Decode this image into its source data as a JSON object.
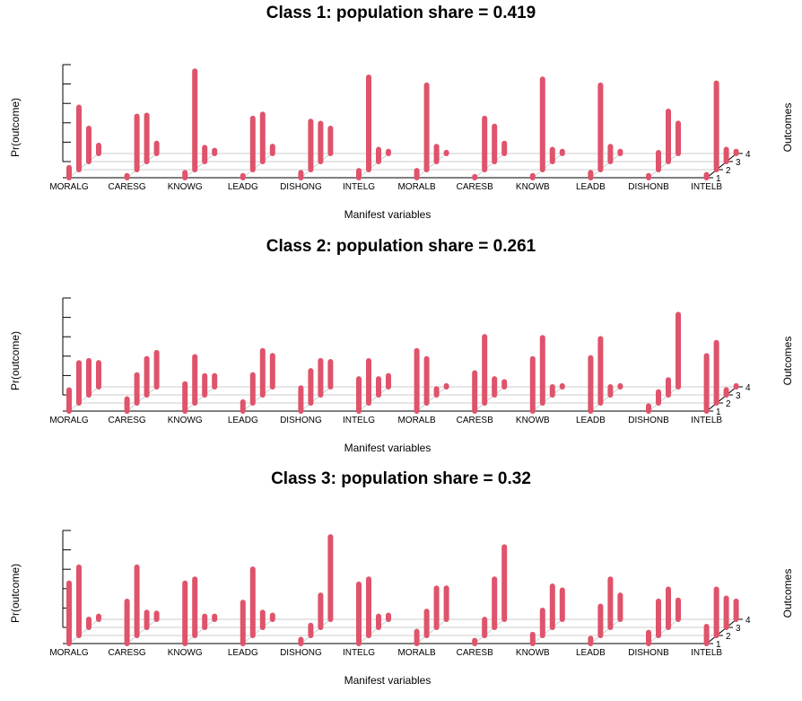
{
  "colors": {
    "bar": "#DF536B",
    "guide": "#BEBEBE",
    "axis": "#000000"
  },
  "chart_data": [
    {
      "type": "3d-bar",
      "title": "Class 1: population share = 0.419",
      "xlabel": "Manifest variables",
      "ylabel": "Pr(outcome)",
      "zlabel": "Outcomes",
      "categories": [
        "MORALG",
        "CARESG",
        "KNOWG",
        "LEADG",
        "DISHONG",
        "INTELG",
        "MORALB",
        "CARESB",
        "KNOWB",
        "LEADB",
        "DISHONB",
        "INTELB"
      ],
      "outcomes": [
        "1",
        "2",
        "3",
        "4"
      ],
      "ylim": [
        0,
        1
      ],
      "values": [
        [
          0.1,
          0.62,
          0.33,
          0.08
        ],
        [
          0.02,
          0.53,
          0.46,
          0.1
        ],
        [
          0.05,
          0.98,
          0.14,
          0.03
        ],
        [
          0.02,
          0.51,
          0.47,
          0.07
        ],
        [
          0.05,
          0.48,
          0.38,
          0.25
        ],
        [
          0.07,
          0.92,
          0.12,
          0.02
        ],
        [
          0.07,
          0.84,
          0.15,
          0.01
        ],
        [
          0.01,
          0.51,
          0.35,
          0.1
        ],
        [
          0.02,
          0.9,
          0.12,
          0.02
        ],
        [
          0.05,
          0.84,
          0.15,
          0.02
        ],
        [
          0.02,
          0.17,
          0.5,
          0.3
        ],
        [
          0.03,
          0.86,
          0.12,
          0.02
        ]
      ]
    },
    {
      "type": "3d-bar",
      "title": "Class 2: population share = 0.261",
      "xlabel": "Manifest variables",
      "ylabel": "Pr(outcome)",
      "zlabel": "Outcomes",
      "categories": [
        "MORALG",
        "CARESG",
        "KNOWG",
        "LEADG",
        "DISHONG",
        "INTELG",
        "MORALB",
        "CARESB",
        "KNOWB",
        "LEADB",
        "DISHONB",
        "INTELB"
      ],
      "outcomes": [
        "1",
        "2",
        "3",
        "4"
      ],
      "ylim": [
        0,
        1
      ],
      "values": [
        [
          0.21,
          0.4,
          0.34,
          0.24
        ],
        [
          0.12,
          0.28,
          0.36,
          0.34
        ],
        [
          0.27,
          0.46,
          0.19,
          0.11
        ],
        [
          0.09,
          0.28,
          0.44,
          0.31
        ],
        [
          0.23,
          0.32,
          0.34,
          0.25
        ],
        [
          0.32,
          0.42,
          0.16,
          0.11
        ],
        [
          0.6,
          0.44,
          0.06,
          0.01
        ],
        [
          0.38,
          0.66,
          0.16,
          0.05
        ],
        [
          0.52,
          0.65,
          0.08,
          0.01
        ],
        [
          0.53,
          0.64,
          0.08,
          0.01
        ],
        [
          0.05,
          0.11,
          0.15,
          0.72
        ],
        [
          0.55,
          0.6,
          0.05,
          0.01
        ]
      ]
    },
    {
      "type": "3d-bar",
      "title": "Class 3: population share = 0.32",
      "xlabel": "Manifest variables",
      "ylabel": "Pr(outcome)",
      "zlabel": "Outcomes",
      "categories": [
        "MORALG",
        "CARESG",
        "KNOWG",
        "LEADG",
        "DISHONG",
        "INTELG",
        "MORALB",
        "CARESB",
        "KNOWB",
        "LEADB",
        "DISHONB",
        "INTELB"
      ],
      "outcomes": [
        "1",
        "2",
        "3",
        "4"
      ],
      "ylim": [
        0,
        1
      ],
      "values": [
        [
          0.6,
          0.68,
          0.08,
          0.03
        ],
        [
          0.42,
          0.68,
          0.15,
          0.06
        ],
        [
          0.6,
          0.56,
          0.11,
          0.03
        ],
        [
          0.41,
          0.66,
          0.15,
          0.04
        ],
        [
          0.04,
          0.1,
          0.32,
          0.82
        ],
        [
          0.59,
          0.56,
          0.11,
          0.04
        ],
        [
          0.12,
          0.24,
          0.39,
          0.31
        ],
        [
          0.03,
          0.16,
          0.48,
          0.72
        ],
        [
          0.09,
          0.25,
          0.41,
          0.29
        ],
        [
          0.05,
          0.29,
          0.48,
          0.24
        ],
        [
          0.11,
          0.34,
          0.38,
          0.19
        ],
        [
          0.17,
          0.46,
          0.29,
          0.18
        ]
      ]
    }
  ]
}
